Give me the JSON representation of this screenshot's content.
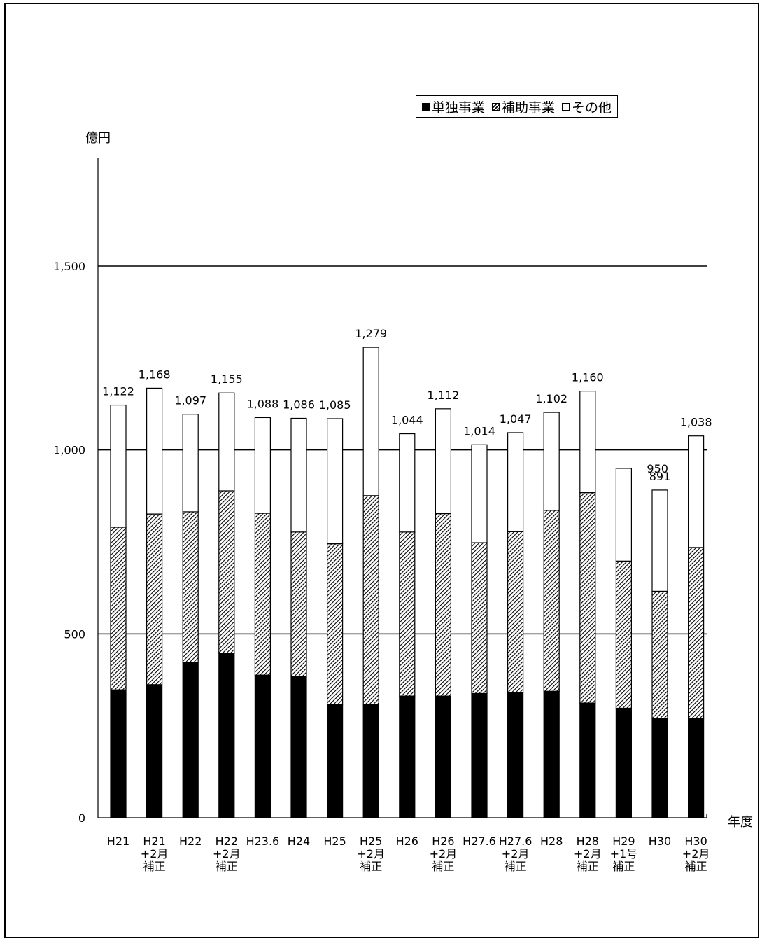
{
  "chart_data": {
    "type": "bar",
    "stacked": true,
    "ylabel": "億円",
    "xlabel": "年度",
    "ylim": [
      0,
      1700
    ],
    "yticks": [
      0,
      500,
      1000,
      1500
    ],
    "ytick_labels": [
      "0",
      "500",
      "1,000",
      "1,500"
    ],
    "gridlines": [
      500,
      1000,
      1500
    ],
    "legend_position": "top-right",
    "categories": [
      [
        "H21"
      ],
      [
        "H21",
        "+2月",
        "補正"
      ],
      [
        "H22"
      ],
      [
        "H22",
        "+2月",
        "補正"
      ],
      [
        "H23.6"
      ],
      [
        "H24"
      ],
      [
        "H25"
      ],
      [
        "H25",
        "+2月",
        "補正"
      ],
      [
        "H26"
      ],
      [
        "H26",
        "+2月",
        "補正"
      ],
      [
        "H27.6"
      ],
      [
        "H27.6",
        "+2月",
        "補正"
      ],
      [
        "H28"
      ],
      [
        "H28",
        "+2月",
        "補正"
      ],
      [
        "H29",
        "+1号",
        "補正"
      ],
      [
        "H30"
      ],
      [
        "H30",
        "+2月",
        "補正"
      ]
    ],
    "series": [
      {
        "name": "単独事業",
        "pattern": "solid",
        "color": "#000000",
        "values": [
          348,
          362,
          423,
          447,
          388,
          385,
          308,
          308,
          331,
          331,
          338,
          341,
          344,
          312,
          298,
          270,
          270
        ]
      },
      {
        "name": "補助事業",
        "pattern": "hatched",
        "color": "#555555",
        "values": [
          442,
          464,
          409,
          442,
          440,
          392,
          437,
          568,
          446,
          496,
          410,
          437,
          492,
          572,
          400,
          346,
          465
        ]
      },
      {
        "name": "その他",
        "pattern": "empty",
        "color": "#ffffff",
        "values": [
          332,
          342,
          265,
          266,
          260,
          309,
          340,
          403,
          267,
          285,
          266,
          269,
          266,
          276,
          252,
          275,
          303
        ]
      }
    ],
    "totals": [
      1122,
      1168,
      1097,
      1155,
      1088,
      1086,
      1085,
      1279,
      1044,
      1112,
      1014,
      1047,
      1102,
      1160,
      950,
      891,
      1038
    ],
    "total_labels": [
      "1,122",
      "1,168",
      "1,097",
      "1,155",
      "1,088",
      "1,086",
      "1,085",
      "1,279",
      "1,044",
      "1,112",
      "1,014",
      "1,047",
      "1,102",
      "1,160",
      "950",
      "891",
      "1,038"
    ]
  },
  "legend": {
    "items": [
      {
        "label": "単独事業",
        "pattern": "solid"
      },
      {
        "label": "補助事業",
        "pattern": "hatched"
      },
      {
        "label": "その他",
        "pattern": "empty"
      }
    ]
  }
}
